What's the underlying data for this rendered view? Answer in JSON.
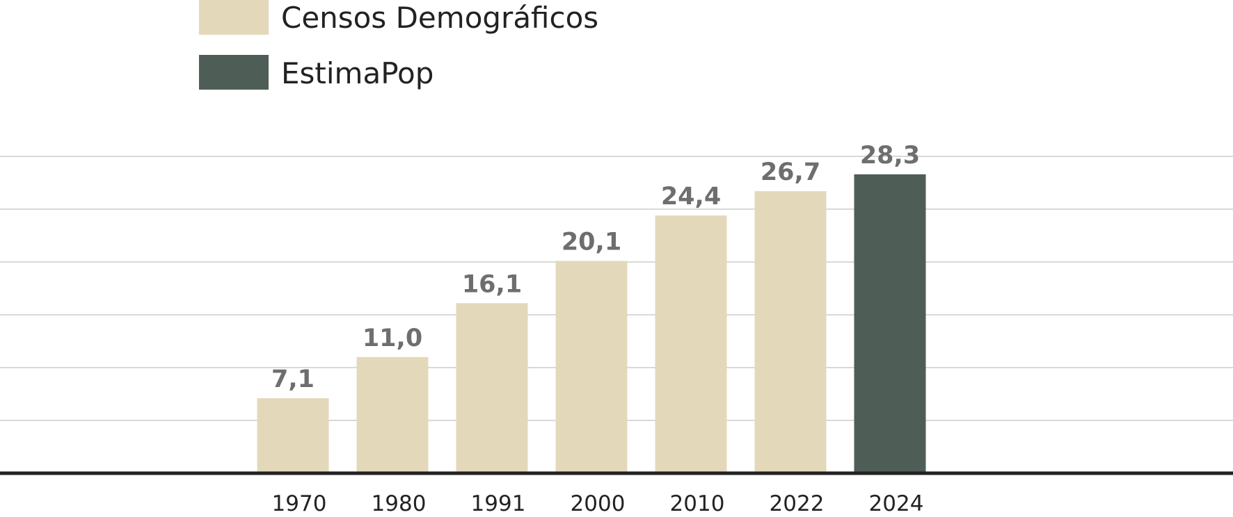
{
  "chart_data": {
    "type": "bar",
    "categories": [
      "1970",
      "1980",
      "1991",
      "2000",
      "2010",
      "2022",
      "2024"
    ],
    "values": [
      7.1,
      11.0,
      16.1,
      20.1,
      24.4,
      26.7,
      28.3
    ],
    "value_labels": [
      "7,1",
      "11,0",
      "16,1",
      "20,1",
      "24,4",
      "26,7",
      "28,3"
    ],
    "bar_series": [
      "Censos Demográficos",
      "Censos Demográficos",
      "Censos Demográficos",
      "Censos Demográficos",
      "Censos Demográficos",
      "Censos Demográficos",
      "EstimaPop"
    ],
    "series": [
      {
        "name": "Censos Demográficos",
        "color": "#e3d8b9"
      },
      {
        "name": "EstimaPop",
        "color": "#4e5e56"
      }
    ],
    "ylim": [
      0,
      30
    ],
    "grid": true,
    "legend_position": "top-left",
    "title": "",
    "xlabel": "",
    "ylabel": ""
  }
}
